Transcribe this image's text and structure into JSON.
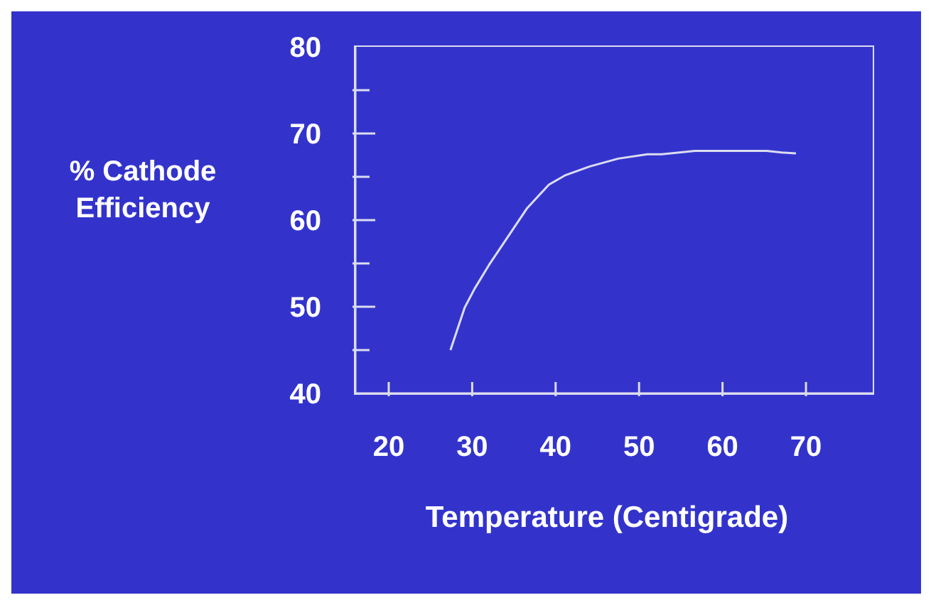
{
  "chart_data": {
    "type": "line",
    "xlabel": "Temperature (Centigrade)",
    "ylabel": "% Cathode Efficiency",
    "x": [
      27.4,
      29.1,
      30.3,
      32.0,
      34.3,
      36.6,
      39.2,
      41.2,
      44.1,
      47.5,
      51.0,
      52.7,
      56.7,
      65.3,
      67.1,
      68.8
    ],
    "series": [
      {
        "color": "#dcdcf0",
        "values": [
          45.0,
          49.9,
          52.1,
          54.8,
          58.1,
          61.4,
          64.1,
          65.2,
          66.2,
          67.1,
          67.6,
          67.6,
          68.0,
          68.0,
          67.8,
          67.7
        ]
      }
    ],
    "xlim": [
      16,
      78
    ],
    "xticks": [
      20,
      30,
      40,
      50,
      60,
      70
    ],
    "ylim": [
      40,
      80
    ],
    "yticks": [
      40,
      {
        "value": 45,
        "label": null
      },
      50,
      {
        "value": 55,
        "label": null
      },
      60,
      {
        "value": 65,
        "label": null
      },
      70,
      {
        "value": 75,
        "label": null
      },
      80
    ],
    "grid": false,
    "marker": "none",
    "line_style": "solid"
  }
}
